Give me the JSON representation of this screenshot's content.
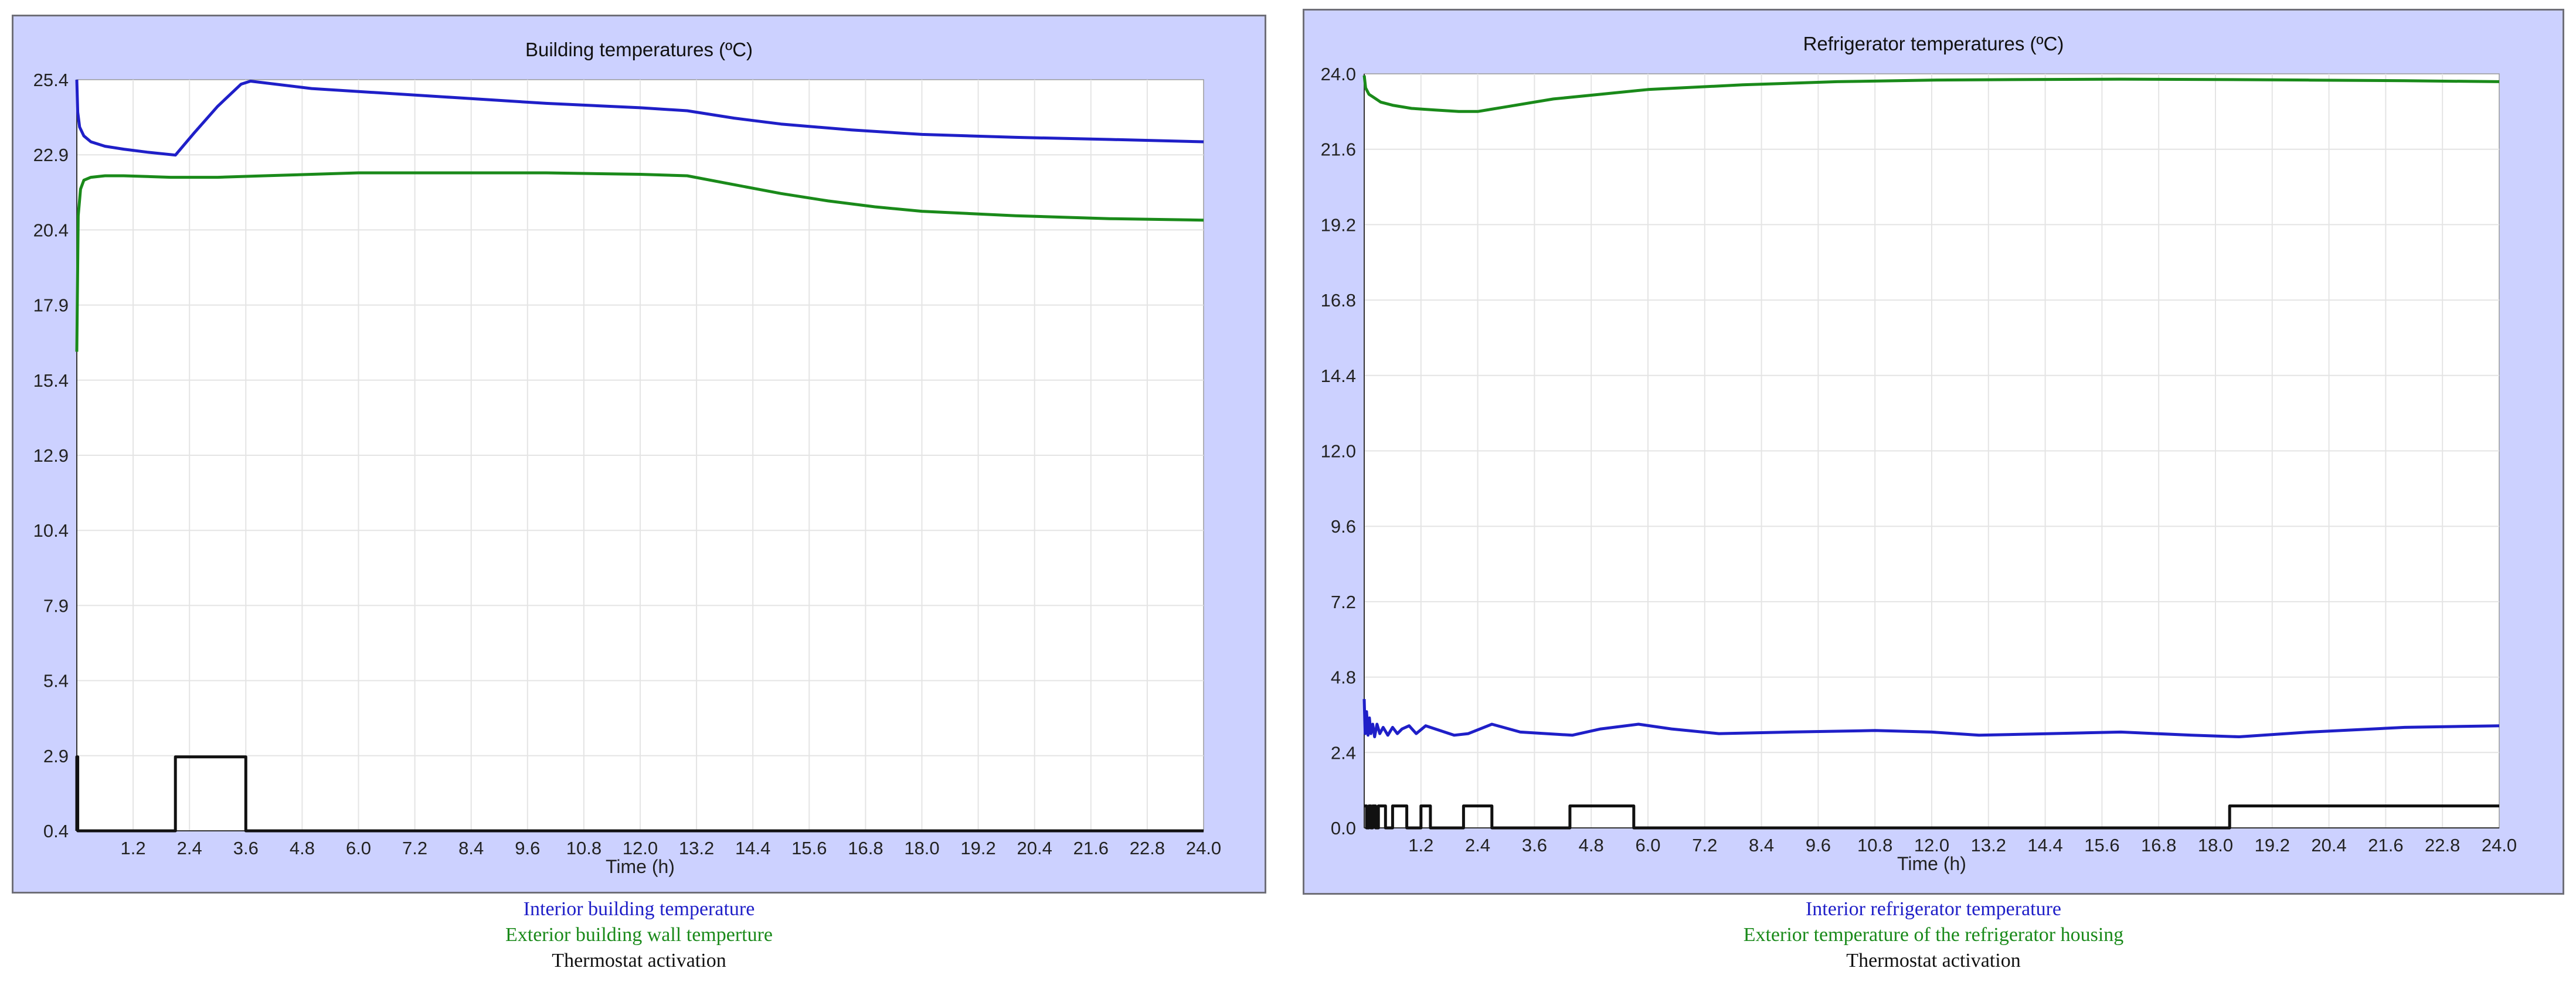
{
  "chart_data": [
    {
      "type": "line",
      "title": "Building temperatures (ºC)",
      "xlabel": "Time (h)",
      "ylabel": "",
      "xlim": [
        0,
        24
      ],
      "ylim": [
        0,
        25.4
      ],
      "x_ticks": [
        "1.2",
        "2.4",
        "3.6",
        "4.8",
        "6.0",
        "7.2",
        "8.4",
        "9.6",
        "10.8",
        "12.0",
        "13.2",
        "14.4",
        "15.6",
        "16.8",
        "18.0",
        "19.2",
        "20.4",
        "21.6",
        "22.8",
        "24.0"
      ],
      "y_ticks": [
        "25.4",
        "22.9",
        "20.4",
        "17.9",
        "15.4",
        "12.9",
        "10.4",
        "7.9",
        "5.4",
        "2.9",
        "0.4"
      ],
      "grid": true,
      "series": [
        {
          "name": "Interior building temperature",
          "color": "#1f1fc8",
          "x": [
            0,
            0.02,
            0.06,
            0.15,
            0.3,
            0.6,
            1.0,
            1.5,
            2.1,
            2.5,
            3.0,
            3.5,
            3.7,
            5.0,
            8.0,
            10.0,
            12.0,
            13.0,
            14.0,
            15.0,
            16.5,
            18.0,
            20.0,
            22.0,
            24.0
          ],
          "values": [
            25.4,
            24.3,
            23.8,
            23.5,
            23.3,
            23.15,
            23.05,
            22.95,
            22.85,
            23.6,
            24.5,
            25.25,
            25.35,
            25.1,
            24.8,
            24.6,
            24.45,
            24.35,
            24.1,
            23.9,
            23.7,
            23.55,
            23.45,
            23.38,
            23.3
          ]
        },
        {
          "name": "Exterior building wall temperture",
          "color": "#1a8a1a",
          "x": [
            0,
            0.03,
            0.08,
            0.15,
            0.3,
            0.6,
            1.0,
            2.0,
            3.0,
            4.0,
            6.0,
            8.0,
            10.0,
            12.0,
            13.0,
            14.0,
            15.0,
            16.0,
            17.0,
            18.0,
            20.0,
            22.0,
            24.0
          ],
          "values": [
            16.2,
            20.8,
            21.7,
            22.0,
            22.1,
            22.15,
            22.15,
            22.1,
            22.1,
            22.15,
            22.25,
            22.25,
            22.25,
            22.2,
            22.15,
            21.85,
            21.55,
            21.3,
            21.1,
            20.95,
            20.8,
            20.7,
            20.65
          ]
        },
        {
          "name": "Thermostat activation",
          "color": "#111111",
          "x": [
            0,
            0,
            0.02,
            0.02,
            2.1,
            2.1,
            3.6,
            3.6,
            24.0
          ],
          "values": [
            0,
            2.5,
            2.5,
            0,
            0,
            2.5,
            2.5,
            0,
            0
          ]
        }
      ]
    },
    {
      "type": "line",
      "title": "Refrigerator temperatures (ºC)",
      "xlabel": "Time (h)",
      "ylabel": "",
      "xlim": [
        0,
        24
      ],
      "ylim": [
        0,
        24
      ],
      "x_ticks": [
        "1.2",
        "2.4",
        "3.6",
        "4.8",
        "6.0",
        "7.2",
        "8.4",
        "9.6",
        "10.8",
        "12.0",
        "13.2",
        "14.4",
        "15.6",
        "16.8",
        "18.0",
        "19.2",
        "20.4",
        "21.6",
        "22.8",
        "24.0"
      ],
      "y_ticks": [
        "24.0",
        "21.6",
        "19.2",
        "16.8",
        "14.4",
        "12.0",
        "9.6",
        "7.2",
        "4.8",
        "2.4",
        "0.0"
      ],
      "grid": true,
      "series": [
        {
          "name": "Interior refrigerator temperature",
          "color": "#1f1fc8",
          "x": [
            0,
            0.02,
            0.05,
            0.08,
            0.11,
            0.14,
            0.18,
            0.22,
            0.27,
            0.33,
            0.4,
            0.5,
            0.6,
            0.7,
            0.8,
            0.95,
            1.1,
            1.3,
            1.6,
            1.9,
            2.2,
            2.7,
            3.3,
            4.4,
            5.0,
            5.8,
            6.5,
            7.5,
            9.0,
            10.8,
            12.0,
            13.0,
            14.5,
            16.0,
            17.5,
            18.5,
            20.0,
            22.0,
            24.0
          ],
          "values": [
            4.1,
            3.0,
            3.7,
            2.95,
            3.5,
            3.0,
            3.3,
            2.9,
            3.3,
            3.0,
            3.2,
            2.95,
            3.2,
            3.0,
            3.15,
            3.25,
            3.0,
            3.25,
            3.1,
            2.95,
            3.0,
            3.3,
            3.05,
            2.95,
            3.15,
            3.3,
            3.15,
            3.0,
            3.05,
            3.1,
            3.05,
            2.95,
            3.0,
            3.05,
            2.95,
            2.9,
            3.05,
            3.2,
            3.25
          ]
        },
        {
          "name": "Exterior temperature of the refrigerator housing",
          "color": "#1a8a1a",
          "x": [
            0,
            0.03,
            0.1,
            0.2,
            0.35,
            0.6,
            1.0,
            1.5,
            2.0,
            2.4,
            3.0,
            4.0,
            5.0,
            6.0,
            8.0,
            10.0,
            12.0,
            14.0,
            16.0,
            18.0,
            20.0,
            22.0,
            24.0
          ],
          "values": [
            23.95,
            23.55,
            23.35,
            23.25,
            23.1,
            23.0,
            22.9,
            22.85,
            22.8,
            22.8,
            22.95,
            23.2,
            23.35,
            23.5,
            23.65,
            23.75,
            23.8,
            23.82,
            23.83,
            23.82,
            23.8,
            23.78,
            23.75
          ]
        },
        {
          "name": "Thermostat activation",
          "color": "#111111",
          "x": [
            0,
            0.05,
            0.05,
            0.1,
            0.1,
            0.14,
            0.14,
            0.18,
            0.18,
            0.24,
            0.24,
            0.3,
            0.3,
            0.45,
            0.45,
            0.6,
            0.6,
            0.9,
            0.9,
            1.2,
            1.2,
            1.4,
            1.4,
            2.1,
            2.1,
            2.7,
            2.7,
            4.35,
            4.35,
            5.7,
            5.7,
            18.3,
            18.3,
            24.0
          ],
          "values": [
            0.7,
            0.7,
            0,
            0,
            0.7,
            0.7,
            0,
            0,
            0.7,
            0.7,
            0,
            0,
            0.7,
            0.7,
            0,
            0,
            0.7,
            0.7,
            0,
            0,
            0.7,
            0.7,
            0,
            0,
            0.7,
            0.7,
            0,
            0,
            0.7,
            0.7,
            0,
            0,
            0.7,
            0.7
          ]
        }
      ]
    }
  ]
}
